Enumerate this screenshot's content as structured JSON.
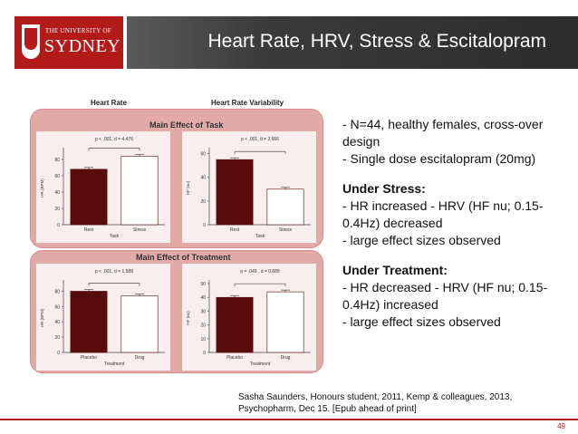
{
  "header": {
    "logo_small": "THE UNIVERSITY OF",
    "logo_big": "SYDNEY",
    "title": "Heart Rate, HRV, Stress & Escitalopram"
  },
  "figure": {
    "heading_hr": "Heart Rate",
    "heading_hrv": "Heart Rate Variability",
    "section_task": "Main Effect of Task",
    "section_treatment": "Main Effect of Treatment"
  },
  "chart_data": [
    {
      "type": "bar",
      "categories": [
        "Rest",
        "Stress"
      ],
      "values": [
        68,
        84
      ],
      "ylabel": "HR (BPM)",
      "xlabel": "Task",
      "ylim": [
        0,
        90
      ],
      "yticks": [
        "0",
        "20",
        "40",
        "60",
        "80"
      ],
      "annotation": "p < .001, d = 4.476",
      "colors": [
        "#5a0b0b",
        "#ffffff"
      ]
    },
    {
      "type": "bar",
      "categories": [
        "Rest",
        "Stress"
      ],
      "values": [
        55,
        30
      ],
      "ylabel": "HF (nu)",
      "xlabel": "Task",
      "ylim": [
        0,
        62
      ],
      "yticks": [
        "0",
        "20",
        "40",
        "60"
      ],
      "annotation": "p < .001, d = 2.666",
      "colors": [
        "#5a0b0b",
        "#ffffff"
      ]
    },
    {
      "type": "bar",
      "categories": [
        "Placebo",
        "Drug"
      ],
      "values": [
        80,
        74
      ],
      "ylabel": "HR (BPM)",
      "xlabel": "Treatment",
      "ylim": [
        0,
        90
      ],
      "yticks": [
        "0",
        "20",
        "40",
        "60",
        "80"
      ],
      "annotation": "p < .001, d = 1.588",
      "colors": [
        "#5a0b0b",
        "#ffffff"
      ]
    },
    {
      "type": "bar",
      "categories": [
        "Placebo",
        "Drug"
      ],
      "values": [
        40,
        44
      ],
      "ylabel": "HF (nu)",
      "xlabel": "Treatment",
      "ylim": [
        0,
        50
      ],
      "yticks": [
        "0",
        "10",
        "20",
        "30",
        "40",
        "50"
      ],
      "annotation": "p = .049 , d = 0.689",
      "colors": [
        "#5a0b0b",
        "#ffffff"
      ]
    }
  ],
  "text": {
    "intro_1": "- N=44, healthy females, cross-over design",
    "intro_2": "- Single dose escitalopram (20mg)",
    "stress_heading": "Under Stress:",
    "stress_1": "- HR increased - HRV (HF nu; 0.15-0.4Hz) decreased",
    "stress_2": "- large effect sizes observed",
    "treat_heading": "Under Treatment:",
    "treat_1": "- HR decreased - HRV (HF nu; 0.15-0.4Hz) increased",
    "treat_2": "- large effect sizes observed"
  },
  "footer": {
    "reference": "Sasha Saunders, Honours student, 2011, Kemp & colleagues, 2013, Psychopharm, Dec 15. [Epub ahead of print]",
    "page_number": "49"
  },
  "colors": {
    "brand_red": "#b31b1b",
    "panel_pink": "#e2a9a9",
    "bar_dark": "#5a0b0b"
  }
}
